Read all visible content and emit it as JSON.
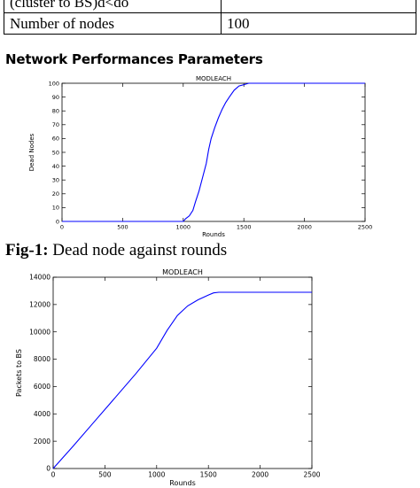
{
  "table": {
    "rows": [
      {
        "param": "(cluster to BS)d<do",
        "value": ""
      },
      {
        "param": "Number of nodes",
        "value": "100"
      }
    ]
  },
  "section_heading": "Network Performances Parameters",
  "caption": {
    "label": "Fig-1:",
    "text": "Dead node against rounds"
  },
  "chart_data": [
    {
      "type": "line",
      "title": "MODLEACH",
      "xlabel": "Rounds",
      "ylabel": "Dead Nodes",
      "xlim": [
        0,
        2500
      ],
      "ylim": [
        0,
        100
      ],
      "xticks": [
        0,
        500,
        1000,
        1500,
        2000,
        2500
      ],
      "yticks": [
        0,
        10,
        20,
        30,
        40,
        50,
        60,
        70,
        80,
        90,
        100
      ],
      "grid": false,
      "color": "#0000ff",
      "series": [
        {
          "x": [
            0,
            1000,
            1020,
            1050,
            1080,
            1100,
            1130,
            1160,
            1190,
            1210,
            1230,
            1260,
            1290,
            1320,
            1350,
            1380,
            1420,
            1460,
            1500,
            1540,
            1600,
            2500
          ],
          "y": [
            0,
            0,
            2,
            4,
            8,
            14,
            22,
            32,
            42,
            52,
            60,
            68,
            75,
            81,
            86,
            90,
            95,
            98,
            99,
            100,
            100,
            100
          ]
        }
      ]
    },
    {
      "type": "line",
      "title": "MODLEACH",
      "xlabel": "Rounds",
      "ylabel": "Packets to BS",
      "xlim": [
        0,
        2500
      ],
      "ylim": [
        0,
        14000
      ],
      "xticks": [
        0,
        500,
        1000,
        1500,
        2000,
        2500
      ],
      "yticks": [
        0,
        2000,
        4000,
        6000,
        8000,
        10000,
        12000,
        14000
      ],
      "grid": false,
      "color": "#0000ff",
      "series": [
        {
          "x": [
            0,
            100,
            200,
            400,
            600,
            800,
            1000,
            1100,
            1200,
            1300,
            1400,
            1500,
            1550,
            1600,
            2000,
            2500
          ],
          "y": [
            0,
            850,
            1700,
            3450,
            5200,
            6950,
            8800,
            10100,
            11200,
            11900,
            12350,
            12700,
            12850,
            12900,
            12900,
            12900
          ]
        }
      ]
    }
  ]
}
